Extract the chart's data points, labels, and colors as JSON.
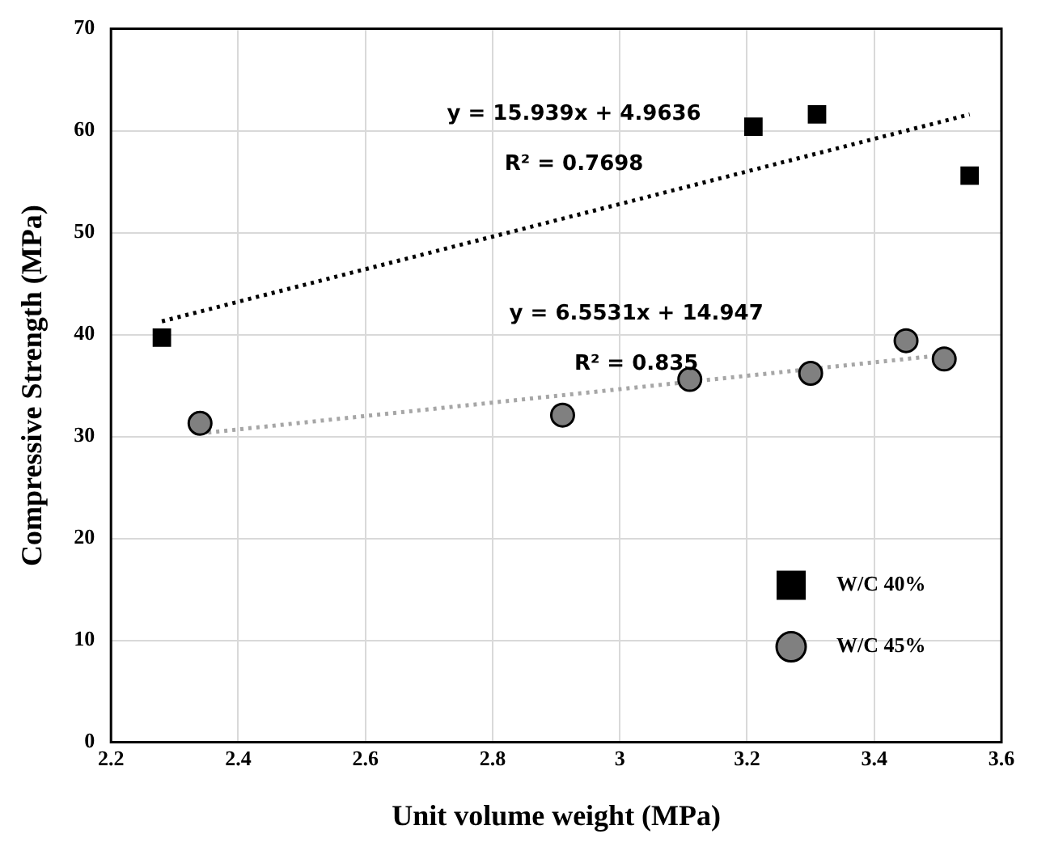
{
  "chart_data": {
    "type": "scatter",
    "xlabel": "Unit volume weight (MPa)",
    "ylabel": "Compressive Strength (MPa)",
    "xlim": [
      2.2,
      3.6
    ],
    "xticks": [
      2.2,
      2.4,
      2.6,
      2.8,
      3,
      3.2,
      3.4,
      3.6
    ],
    "ylim": [
      0,
      70
    ],
    "yticks": [
      0,
      10,
      20,
      30,
      40,
      50,
      60,
      70
    ],
    "grid": true,
    "legend": "bottom right",
    "series": [
      {
        "name": "W/C 40%",
        "color": "#000000",
        "marker": "square",
        "x": [
          2.28,
          3.21,
          3.31,
          3.55
        ],
        "values": [
          39.7,
          60.4,
          61.6,
          55.6
        ]
      },
      {
        "name": "W/C 45%",
        "color": "#808080",
        "marker": "circle",
        "x": [
          2.34,
          2.91,
          3.11,
          3.3,
          3.45,
          3.51
        ],
        "values": [
          31.3,
          32.1,
          35.6,
          36.2,
          39.4,
          37.6
        ]
      },
      {
        "type": "line",
        "color": "#000000",
        "marker": "none",
        "line_style": "dotted",
        "x": [
          2.28,
          3.55
        ],
        "values": [
          41.3,
          61.6
        ]
      },
      {
        "type": "line",
        "color": "#a6a6a6",
        "marker": "none",
        "line_style": "dotted",
        "x": [
          2.34,
          3.51
        ],
        "values": [
          30.3,
          38
        ]
      }
    ],
    "annotations": [
      "y = 15.939x + 4.9636",
      "R² = 0.7698",
      "y = 6.5531x + 14.947",
      "R² = 0.835"
    ]
  }
}
